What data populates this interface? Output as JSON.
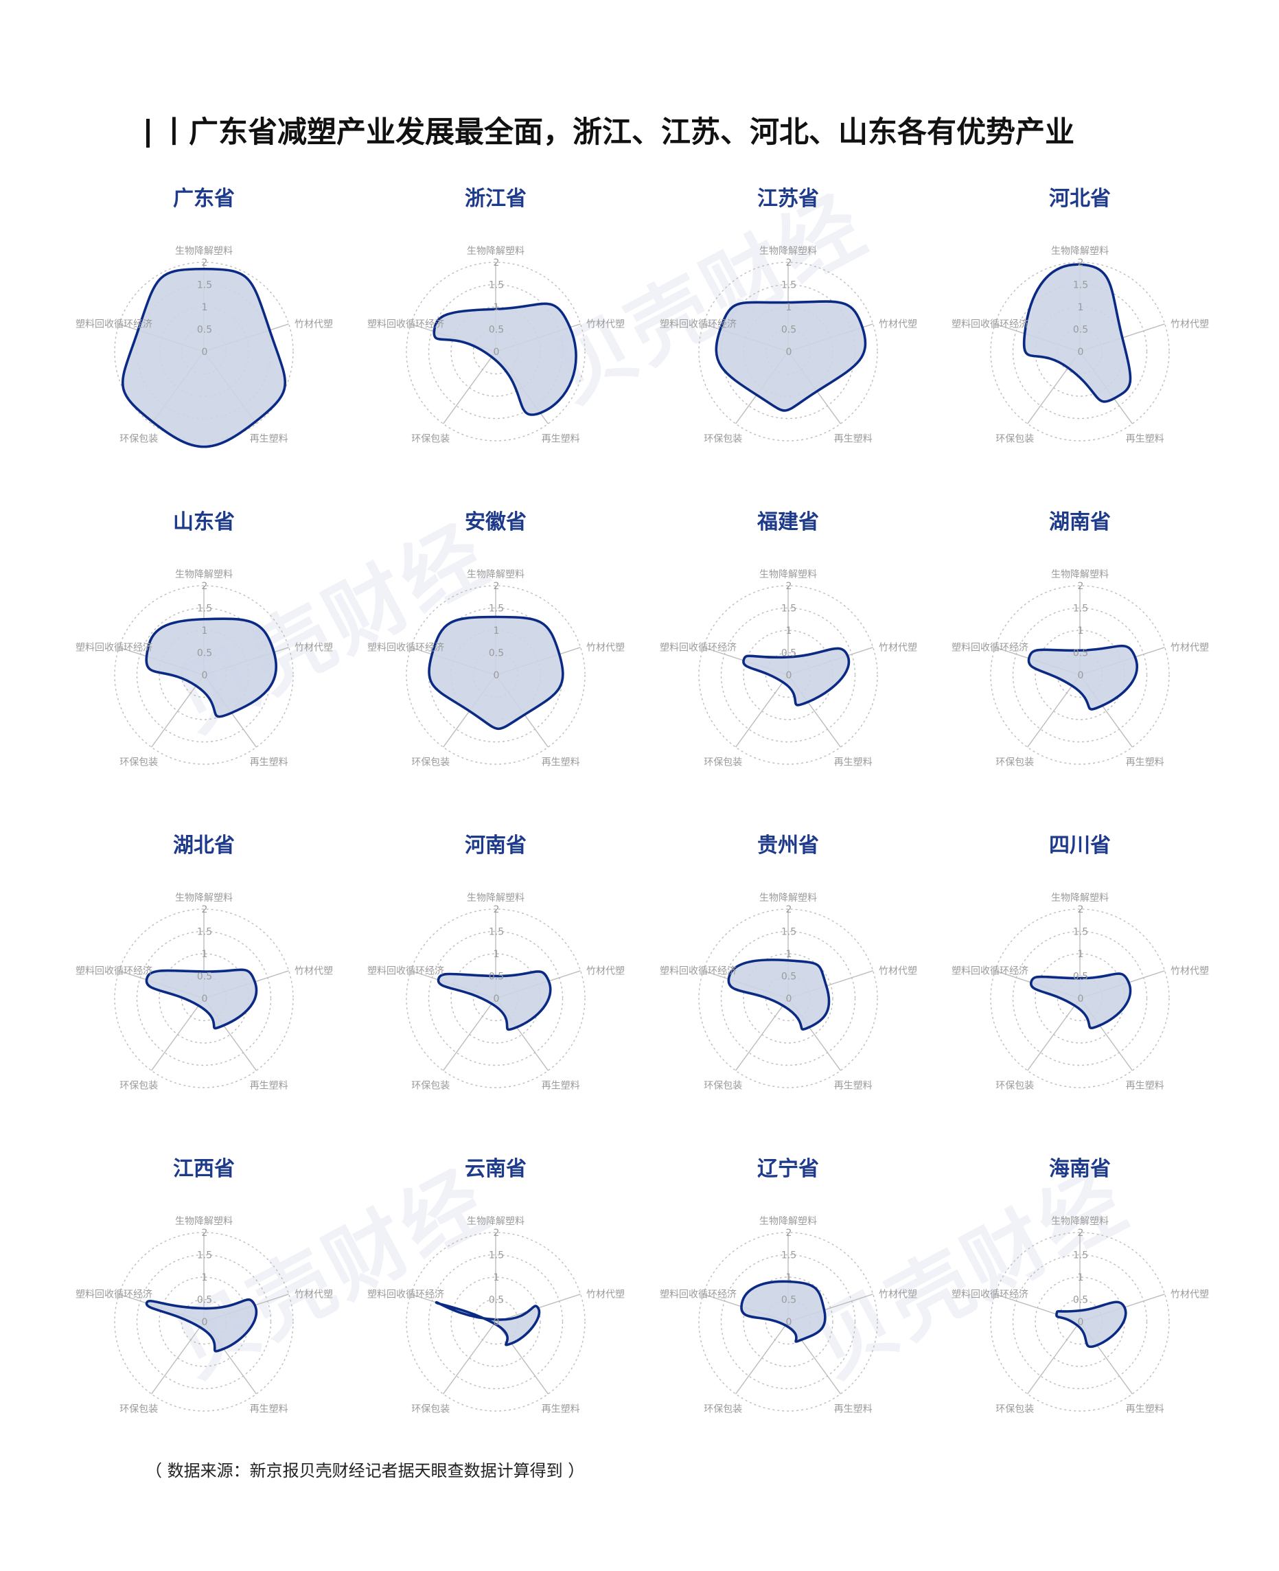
{
  "title": "丨广东省减塑产业发展最全面，浙江、江苏、河北、山东各有优势产业",
  "source_note": "（ 数据来源：新京报贝壳财经记者据天眼查数据计算得到 ）",
  "watermark_text": "贝壳财经",
  "colors": {
    "title": "#1e3a8a",
    "line": "#0a2a84",
    "fill": "#ccd4e6",
    "grid": "#bdbdbd",
    "label": "#9a9a9a"
  },
  "chart_data": [
    {
      "type": "radar",
      "title": "广东省",
      "axes": [
        "生物降解塑料",
        "竹材代塑",
        "再生塑料",
        "环保包装",
        "塑料回收循环经济"
      ],
      "ticks": [
        "0",
        "0.5",
        "1",
        "1.5",
        "2"
      ],
      "rmax": 2,
      "values": [
        1.85,
        1.55,
        1.95,
        1.95,
        1.55
      ]
    },
    {
      "type": "radar",
      "title": "浙江省",
      "axes": [
        "生物降解塑料",
        "竹材代塑",
        "再生塑料",
        "环保包装",
        "塑料回收循环经济"
      ],
      "ticks": [
        "0",
        "0.5",
        "1",
        "1.5",
        "2"
      ],
      "rmax": 2,
      "values": [
        0.95,
        1.75,
        1.7,
        0.15,
        1.45
      ]
    },
    {
      "type": "radar",
      "title": "江苏省",
      "axes": [
        "生物降解塑料",
        "竹材代塑",
        "再生塑料",
        "环保包装",
        "塑料回收循环经济"
      ],
      "ticks": [
        "0",
        "0.5",
        "1",
        "1.5",
        "2"
      ],
      "rmax": 2,
      "values": [
        1.1,
        1.75,
        1.1,
        1.2,
        1.6
      ]
    },
    {
      "type": "radar",
      "title": "河北省",
      "axes": [
        "生物降解塑料",
        "竹材代塑",
        "再生塑料",
        "环保包装",
        "塑料回收循环经济"
      ],
      "ticks": [
        "0",
        "0.5",
        "1",
        "1.5",
        "2"
      ],
      "rmax": 2,
      "values": [
        1.95,
        1.0,
        1.3,
        0.45,
        1.3
      ]
    },
    {
      "type": "radar",
      "title": "山东省",
      "axes": [
        "生物降解塑料",
        "竹材代塑",
        "再生塑料",
        "环保包装",
        "塑料回收循环经济"
      ],
      "ticks": [
        "0",
        "0.5",
        "1",
        "1.5",
        "2"
      ],
      "rmax": 2,
      "values": [
        1.25,
        1.65,
        1.05,
        0.3,
        1.35
      ]
    },
    {
      "type": "radar",
      "title": "安徽省",
      "axes": [
        "生物降解塑料",
        "竹材代塑",
        "再生塑料",
        "环保包装",
        "塑料回收循环经济"
      ],
      "ticks": [
        "0",
        "0.5",
        "1",
        "1.5",
        "2"
      ],
      "rmax": 2,
      "values": [
        1.3,
        1.5,
        1.1,
        1.0,
        1.5
      ]
    },
    {
      "type": "radar",
      "title": "福建省",
      "axes": [
        "生物降解塑料",
        "竹材代塑",
        "再生塑料",
        "环保包装",
        "塑料回收循环经济"
      ],
      "ticks": [
        "0",
        "0.5",
        "1",
        "1.5",
        "2"
      ],
      "rmax": 2,
      "values": [
        0.4,
        1.4,
        0.75,
        0.2,
        1.05
      ]
    },
    {
      "type": "radar",
      "title": "湖南省",
      "axes": [
        "生物降解塑料",
        "竹材代塑",
        "再生塑料",
        "环保包装",
        "塑料回收循环经济"
      ],
      "ticks": [
        "0",
        "0.5",
        "1",
        "1.5",
        "2"
      ],
      "rmax": 2,
      "values": [
        0.55,
        1.3,
        0.85,
        0.3,
        1.2
      ]
    },
    {
      "type": "radar",
      "title": "湖北省",
      "axes": [
        "生物降解塑料",
        "竹材代塑",
        "再生塑料",
        "环保包装",
        "塑料回收循环经济"
      ],
      "ticks": [
        "0",
        "0.5",
        "1",
        "1.5",
        "2"
      ],
      "rmax": 2,
      "values": [
        0.6,
        1.2,
        0.75,
        0.2,
        1.35
      ]
    },
    {
      "type": "radar",
      "title": "河南省",
      "axes": [
        "生物降解塑料",
        "竹材代塑",
        "再生塑料",
        "环保包装",
        "塑料回收循环经济"
      ],
      "ticks": [
        "0",
        "0.5",
        "1",
        "1.5",
        "2"
      ],
      "rmax": 2,
      "values": [
        0.5,
        1.25,
        0.8,
        0.15,
        1.35
      ]
    },
    {
      "type": "radar",
      "title": "贵州省",
      "axes": [
        "生物降解塑料",
        "竹材代塑",
        "再生塑料",
        "环保包装",
        "塑料回收循环经济"
      ],
      "ticks": [
        "0",
        "0.5",
        "1",
        "1.5",
        "2"
      ],
      "rmax": 2,
      "values": [
        0.85,
        0.9,
        0.8,
        0.2,
        1.4
      ]
    },
    {
      "type": "radar",
      "title": "四川省",
      "axes": [
        "生物降解塑料",
        "竹材代塑",
        "再生塑料",
        "环保包装",
        "塑料回收循环经济"
      ],
      "ticks": [
        "0",
        "0.5",
        "1",
        "1.5",
        "2"
      ],
      "rmax": 2,
      "values": [
        0.45,
        1.15,
        0.75,
        0.2,
        1.15
      ]
    },
    {
      "type": "radar",
      "title": "江西省",
      "axes": [
        "生物降解塑料",
        "竹材代塑",
        "再生塑料",
        "环保包装",
        "塑料回收循环经济"
      ],
      "ticks": [
        "0",
        "0.5",
        "1",
        "1.5",
        "2"
      ],
      "rmax": 2,
      "values": [
        0.3,
        1.2,
        0.75,
        0.15,
        1.35
      ]
    },
    {
      "type": "radar",
      "title": "云南省",
      "axes": [
        "生物降解塑料",
        "竹材代塑",
        "再生塑料",
        "环保包装",
        "塑料回收循环经济"
      ],
      "ticks": [
        "0",
        "0.5",
        "1",
        "1.5",
        "2"
      ],
      "rmax": 2,
      "values": [
        0.05,
        1.0,
        0.6,
        0.05,
        1.4
      ]
    },
    {
      "type": "radar",
      "title": "辽宁省",
      "axes": [
        "生物降解塑料",
        "竹材代塑",
        "再生塑料",
        "环保包装",
        "塑料回收循环经济"
      ],
      "ticks": [
        "0",
        "0.5",
        "1",
        "1.5",
        "2"
      ],
      "rmax": 2,
      "values": [
        0.9,
        0.85,
        0.5,
        0.1,
        1.1
      ]
    },
    {
      "type": "radar",
      "title": "海南省",
      "axes": [
        "生物降解塑料",
        "竹材代塑",
        "再生塑料",
        "环保包装",
        "塑料回收循环经济"
      ],
      "ticks": [
        "0",
        "0.5",
        "1",
        "1.5",
        "2"
      ],
      "rmax": 2,
      "values": [
        0.25,
        1.05,
        0.65,
        0.1,
        0.55
      ]
    }
  ]
}
